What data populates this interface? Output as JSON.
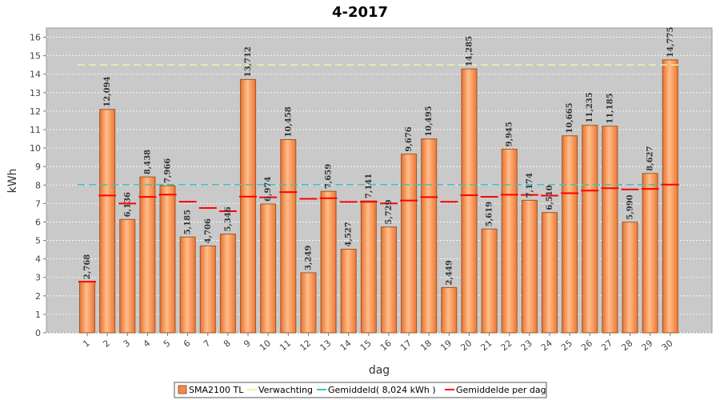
{
  "chart_data": {
    "type": "bar",
    "title": "4-2017",
    "xlabel": "dag",
    "ylabel": "kWh",
    "ylim": [
      0,
      16.5
    ],
    "yticks": [
      0,
      1,
      2,
      3,
      4,
      5,
      6,
      7,
      8,
      9,
      10,
      11,
      12,
      13,
      14,
      15,
      16
    ],
    "categories": [
      "1",
      "2",
      "3",
      "4",
      "5",
      "6",
      "7",
      "8",
      "9",
      "10",
      "11",
      "12",
      "13",
      "14",
      "15",
      "16",
      "17",
      "18",
      "19",
      "20",
      "21",
      "22",
      "23",
      "24",
      "25",
      "26",
      "27",
      "28",
      "29",
      "30"
    ],
    "series": [
      {
        "name": "SMA2100 TL",
        "values": [
          2.768,
          12.094,
          6.136,
          8.438,
          7.966,
          5.185,
          4.706,
          5.346,
          13.712,
          6.974,
          10.458,
          3.249,
          7.659,
          4.527,
          7.141,
          5.729,
          9.676,
          10.495,
          2.449,
          14.285,
          5.619,
          9.945,
          7.174,
          6.51,
          10.665,
          11.235,
          11.185,
          5.99,
          8.627,
          14.775
        ],
        "labels": [
          "2,768",
          "12,094",
          "6,136",
          "8,438",
          "7,966",
          "5,185",
          "4,706",
          "5,346",
          "13,712",
          "6,974",
          "10,458",
          "3,249",
          "7,659",
          "4,527",
          "7,141",
          "5,729",
          "9,676",
          "10,495",
          "2,449",
          "14,285",
          "5,619",
          "9,945",
          "7,174",
          "6,510",
          "10,665",
          "11,235",
          "11,185",
          "5,990",
          "8,627",
          "14,775"
        ]
      },
      {
        "name": "Verwachting",
        "value": 14.5
      },
      {
        "name": "Gemiddeld( 8,024 kWh )",
        "value": 8.024
      },
      {
        "name": "Gemiddelde per dag",
        "values": [
          2.768,
          7.431,
          7.0,
          7.359,
          7.48,
          7.097,
          6.756,
          6.58,
          7.373,
          7.333,
          7.617,
          7.253,
          7.284,
          7.087,
          7.091,
          7.006,
          7.163,
          7.348,
          7.09,
          7.45,
          7.363,
          7.478,
          7.465,
          7.425,
          7.555,
          7.697,
          7.827,
          7.762,
          7.792,
          8.024
        ]
      }
    ],
    "legend": [
      {
        "name": "SMA2100 TL",
        "color": "#f2884a"
      },
      {
        "name": "Verwachting",
        "color": "#f3f3a4"
      },
      {
        "name": "Gemiddeld( 8,024 kWh )",
        "color": "#3fc3c3"
      },
      {
        "name": "Gemiddelde per dag",
        "color": "#ff0000"
      }
    ],
    "legend_position": "bottom-center"
  },
  "colors": {
    "plot_bg": "#c9c9c9",
    "bar_light": "#ffb880",
    "bar_dark": "#f07a36",
    "bar_edge": "#a85a2a",
    "grid": "#ffffff"
  }
}
